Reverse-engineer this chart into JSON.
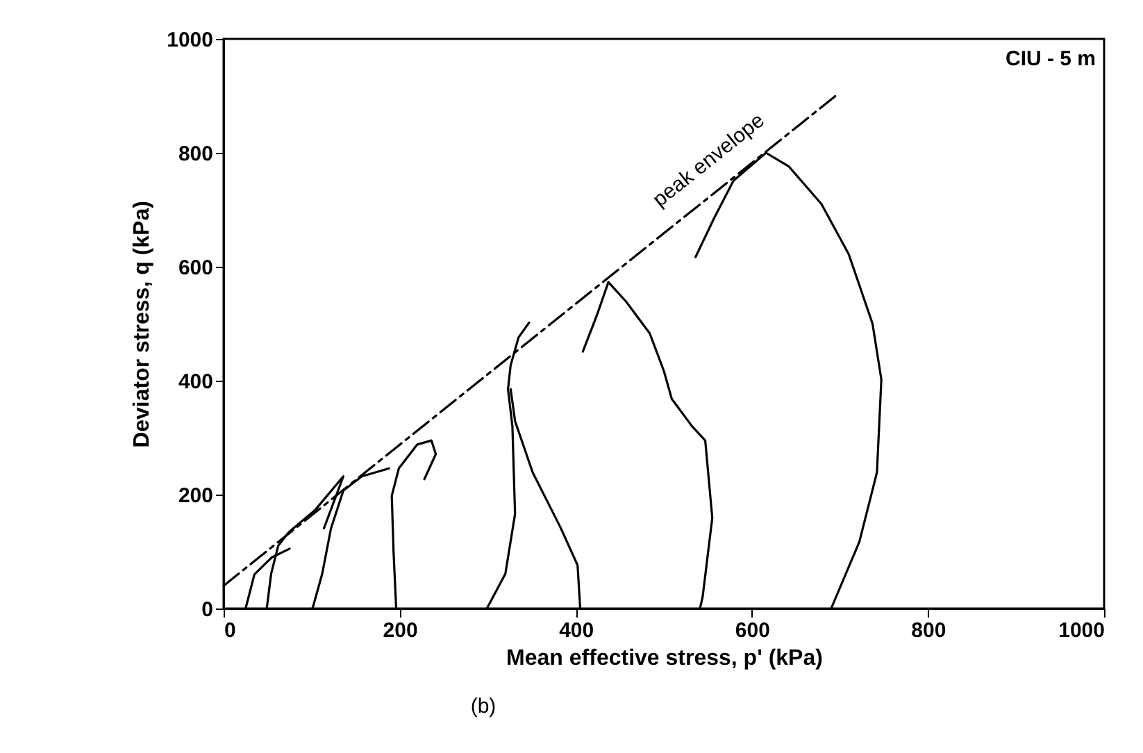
{
  "chart_data": {
    "type": "line",
    "xlabel": "Mean effective stress, p'  (kPa)",
    "ylabel": "Deviator stress, q  (kPa)",
    "xlim": [
      0,
      1000
    ],
    "ylim": [
      0,
      1000
    ],
    "xticks": [
      0,
      200,
      400,
      600,
      800,
      1000
    ],
    "yticks": [
      0,
      200,
      400,
      600,
      800,
      1000
    ],
    "grid": false,
    "annotations": [
      "CIU - 5 m",
      "(b)",
      "peak envelope"
    ],
    "series": [
      {
        "color": "#000000",
        "line_style": "dashed",
        "x": [
          0,
          695
        ],
        "values": [
          40,
          900
        ]
      },
      {
        "color": "#000000",
        "x": [
          25,
          35,
          55,
          75
        ],
        "values": [
          0,
          60,
          90,
          105
        ]
      },
      {
        "color": "#000000",
        "x": [
          49,
          54,
          62,
          74,
          104,
          136,
          114
        ],
        "values": [
          0,
          61,
          110,
          134,
          173,
          232,
          141
        ]
      },
      {
        "color": "#000000",
        "x": [
          101,
          112,
          122,
          136,
          157,
          188
        ],
        "values": [
          0,
          61,
          141,
          207,
          232,
          246
        ]
      },
      {
        "color": "#000000",
        "x": [
          196,
          193,
          191,
          199,
          220,
          236,
          241,
          228
        ],
        "values": [
          0,
          100,
          198,
          246,
          288,
          295,
          271,
          227
        ]
      },
      {
        "color": "#000000",
        "x": [
          299,
          320,
          331,
          328,
          323,
          326,
          335,
          347
        ],
        "values": [
          0,
          61,
          166,
          320,
          385,
          427,
          476,
          502
        ]
      },
      {
        "color": "#000000",
        "x": [
          405,
          402,
          383,
          351,
          331,
          326
        ],
        "values": [
          0,
          76,
          141,
          239,
          329,
          385
        ]
      },
      {
        "color": "#000000",
        "x": [
          541,
          544,
          555,
          547,
          532,
          509,
          500,
          484,
          457,
          437,
          424,
          408
        ],
        "values": [
          0,
          20,
          159,
          295,
          320,
          368,
          417,
          483,
          539,
          573,
          515,
          451
        ]
      },
      {
        "color": "#000000",
        "x": [
          690,
          722,
          742,
          747,
          737,
          710,
          679,
          642,
          616,
          579,
          557,
          536
        ],
        "values": [
          0,
          117,
          239,
          402,
          500,
          622,
          710,
          776,
          800,
          751,
          685,
          617
        ]
      }
    ]
  }
}
